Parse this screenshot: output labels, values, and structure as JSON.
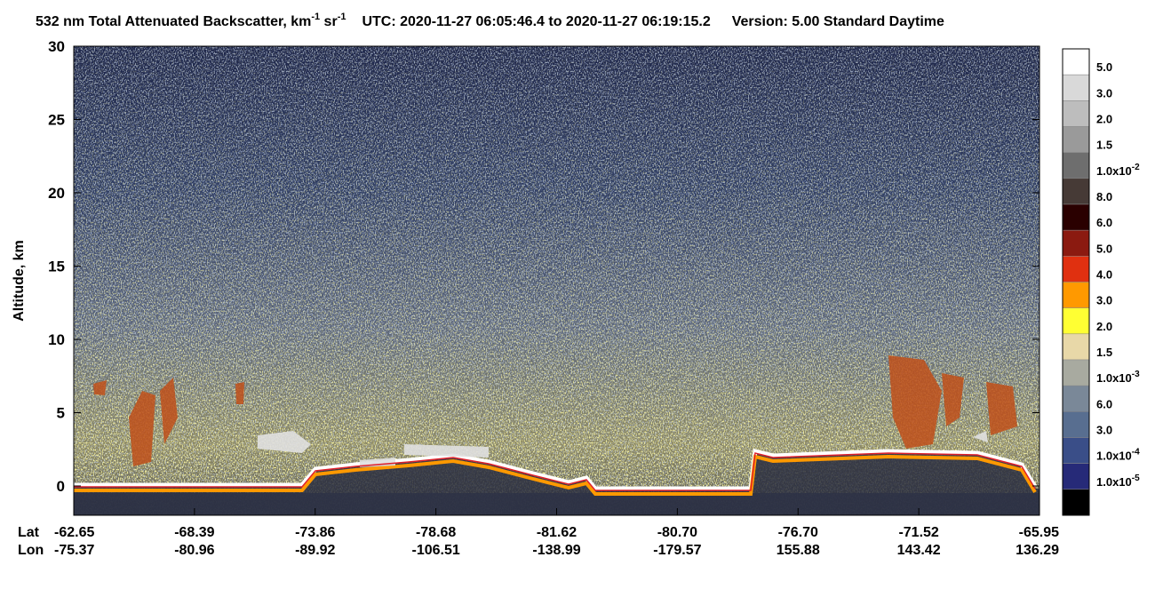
{
  "chart_data": {
    "type": "heatmap",
    "title": {
      "parts": [
        "532 nm Total Attenuated Backscatter, km",
        "-1",
        " sr",
        "-1",
        "UTC:  2020-11-27 06:05:46.4  to  2020-11-27 06:19:15.2",
        "Version: 5.00  Standard  Daytime"
      ]
    },
    "ylabel": "Altitude, km",
    "ylim": [
      -2,
      30
    ],
    "yticks": [
      0,
      5,
      10,
      15,
      20,
      25,
      30
    ],
    "x_row_labels": [
      "Lat",
      "Lon"
    ],
    "lat": [
      "-62.65",
      "-68.39",
      "-73.86",
      "-78.68",
      "-81.62",
      "-80.70",
      "-76.70",
      "-71.52",
      "-65.95"
    ],
    "lon": [
      "-75.37",
      "-80.96",
      "-89.92",
      "-106.51",
      "-138.99",
      "-179.57",
      "155.88",
      "143.42",
      "136.29"
    ],
    "colorbar": {
      "colors": [
        "#ffffff",
        "#d9d9d9",
        "#bdbdbd",
        "#9a9a9a",
        "#6e6e6e",
        "#463a36",
        "#2a0000",
        "#8b1a10",
        "#e03010",
        "#ff9900",
        "#ffff33",
        "#e8d8a8",
        "#a8aaa0",
        "#7a8898",
        "#586e90",
        "#3a4e88",
        "#262a78",
        "#000000"
      ],
      "labels": [
        "5.0",
        "3.0",
        "2.0",
        "1.5",
        {
          "base": "1.0x10",
          "exp": "-2"
        },
        "8.0",
        "6.0",
        "5.0",
        "4.0",
        "3.0",
        "2.0",
        "1.5",
        {
          "base": "1.0x10",
          "exp": "-3"
        },
        "6.0",
        "3.0",
        {
          "base": "1.0x10",
          "exp": "-4"
        },
        {
          "base": "1.0x10",
          "exp": "-5"
        }
      ]
    }
  }
}
